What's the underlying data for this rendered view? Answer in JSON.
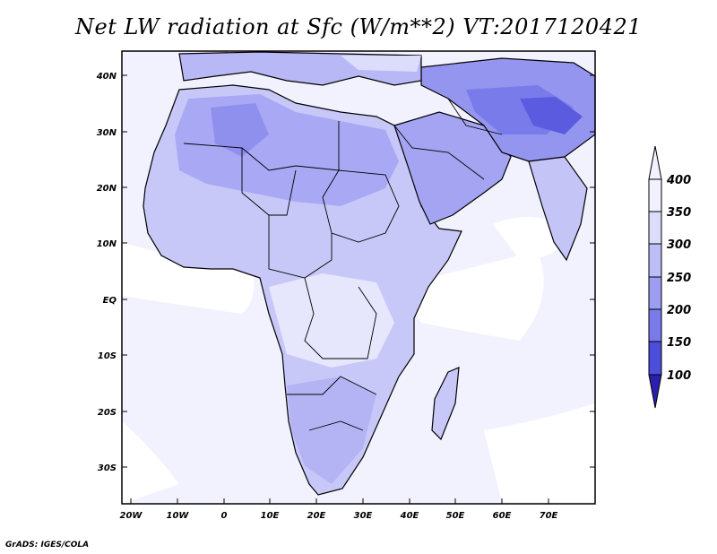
{
  "title": "Net LW radiation at Sfc (W/m**2) VT:2017120421",
  "footer": "GrADS: IGES/COLA",
  "map": {
    "lat_labels": [
      "40N",
      "30N",
      "20N",
      "10N",
      "EQ",
      "10S",
      "20S",
      "30S"
    ],
    "lon_labels": [
      "20W",
      "10W",
      "0",
      "10E",
      "20E",
      "30E",
      "40E",
      "50E",
      "60E",
      "70E"
    ],
    "lon_range": [
      -22,
      80
    ],
    "lat_range": [
      -37,
      45
    ],
    "colors": {
      "ocean": "#f2f2fe",
      "ocean_light": "#ffffff",
      "land_350": "#dcdcfb",
      "land_300": "#bebef7",
      "land_250": "#9d9ef2",
      "land_200": "#7a7bea",
      "outline": "#000000"
    }
  },
  "colorbar": {
    "labels": [
      "400",
      "350",
      "300",
      "250",
      "200",
      "150",
      "100"
    ],
    "colors": [
      "#f2f2fe",
      "#dcdcfb",
      "#bebef7",
      "#9d9ef2",
      "#7a7bea",
      "#4d4ddb",
      "#2b1fb0"
    ]
  }
}
